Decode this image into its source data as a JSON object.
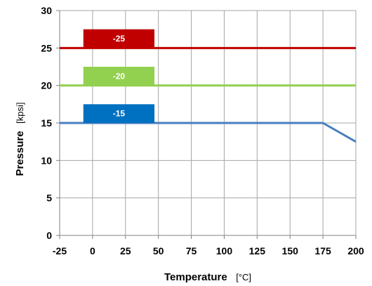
{
  "chart_data": {
    "type": "line",
    "xlabel": "Temperature",
    "xunit": "[°C]",
    "ylabel": "Pressure",
    "yunit": "[kpsi]",
    "xlim": [
      -25,
      200
    ],
    "ylim": [
      0,
      30
    ],
    "xticks": [
      -25,
      0,
      25,
      50,
      75,
      100,
      125,
      150,
      175,
      200
    ],
    "yticks": [
      0,
      5,
      10,
      15,
      20,
      25,
      30
    ],
    "grid": true,
    "series": [
      {
        "name": "-25",
        "color": "#c00000",
        "x": [
          -25,
          200
        ],
        "y": [
          25,
          25
        ]
      },
      {
        "name": "-20",
        "color": "#92d050",
        "x": [
          -25,
          200
        ],
        "y": [
          20,
          20
        ]
      },
      {
        "name": "-15",
        "color": "#4a7ebf",
        "x": [
          -25,
          175,
          200
        ],
        "y": [
          15,
          15,
          12.5
        ]
      }
    ],
    "labels": [
      {
        "text": "-25",
        "color": "#c00000",
        "x_from": -7,
        "x_to": 47,
        "y_from": 25,
        "y_to": 27.5
      },
      {
        "text": "-20",
        "color": "#92d050",
        "x_from": -7,
        "x_to": 47,
        "y_from": 20,
        "y_to": 22.5
      },
      {
        "text": "-15",
        "color": "#0070c0",
        "x_from": -7,
        "x_to": 47,
        "y_from": 15,
        "y_to": 17.5
      }
    ]
  }
}
